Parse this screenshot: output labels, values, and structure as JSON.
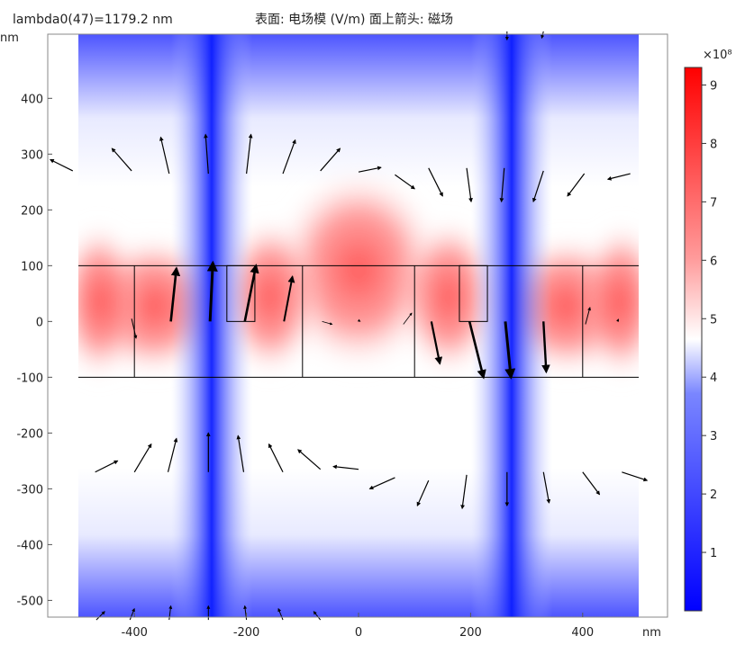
{
  "header": {
    "left_title": "lambda0(47)=1179.2 nm",
    "center_title": "表面: 电场模 (V/m)  面上箭头: 磁场"
  },
  "chart_data": {
    "type": "heatmap",
    "title": "表面: 电场模 (V/m)  面上箭头: 磁场",
    "subtitle": "lambda0(47)=1179.2 nm",
    "x_unit": "nm",
    "y_unit": "nm",
    "xlim": [
      -500,
      500
    ],
    "ylim": [
      -530,
      515
    ],
    "x_ticks": [
      -400,
      -200,
      0,
      200,
      400
    ],
    "y_ticks": [
      400,
      300,
      200,
      100,
      0,
      -100,
      -200,
      -300,
      -400,
      -500
    ],
    "colorbar": {
      "multiplier": "×10⁸",
      "ticks": [
        1,
        2,
        3,
        4,
        5,
        6,
        7,
        8,
        9
      ],
      "range": [
        0,
        9.3
      ],
      "colors": {
        "low": "#0000ff",
        "mid": "#ffffff",
        "high": "#ff0000"
      }
    },
    "structure": {
      "slab": {
        "x": [
          -500,
          500
        ],
        "y": [
          -100,
          100
        ]
      },
      "vertical_boundaries_x": [
        -400,
        -100,
        100,
        400
      ],
      "notches": [
        {
          "x": [
            -235,
            -185
          ],
          "y": [
            0,
            100
          ]
        },
        {
          "x": [
            180,
            230
          ],
          "y": [
            0,
            100
          ]
        }
      ]
    },
    "field_nodes_x": [
      -260,
      270
    ],
    "arrows": [
      {
        "x": -510,
        "y": 270,
        "dx": -40,
        "dy": 20,
        "w": 1.2
      },
      {
        "x": -405,
        "y": 270,
        "dx": -35,
        "dy": 40,
        "w": 1.2
      },
      {
        "x": -338,
        "y": 265,
        "dx": -15,
        "dy": 65,
        "w": 1.2
      },
      {
        "x": -268,
        "y": 265,
        "dx": -5,
        "dy": 70,
        "w": 1.2
      },
      {
        "x": -200,
        "y": 265,
        "dx": 8,
        "dy": 70,
        "w": 1.2
      },
      {
        "x": -135,
        "y": 265,
        "dx": 22,
        "dy": 60,
        "w": 1.2
      },
      {
        "x": -68,
        "y": 270,
        "dx": 35,
        "dy": 40,
        "w": 1.2
      },
      {
        "x": 0,
        "y": 268,
        "dx": 40,
        "dy": 8,
        "w": 1.2
      },
      {
        "x": 65,
        "y": 263,
        "dx": 35,
        "dy": -25,
        "w": 1.2
      },
      {
        "x": 125,
        "y": 275,
        "dx": 25,
        "dy": -50,
        "w": 1.2
      },
      {
        "x": 193,
        "y": 275,
        "dx": 8,
        "dy": -60,
        "w": 1.2
      },
      {
        "x": 260,
        "y": 275,
        "dx": -5,
        "dy": -60,
        "w": 1.2
      },
      {
        "x": 330,
        "y": 270,
        "dx": -18,
        "dy": -55,
        "w": 1.2
      },
      {
        "x": 403,
        "y": 265,
        "dx": -30,
        "dy": -40,
        "w": 1.2
      },
      {
        "x": 485,
        "y": 265,
        "dx": -40,
        "dy": -10,
        "w": 1.2
      },
      {
        "x": -335,
        "y": 0,
        "dx": 10,
        "dy": 95,
        "w": 2.6
      },
      {
        "x": -265,
        "y": 0,
        "dx": 5,
        "dy": 105,
        "w": 3.0
      },
      {
        "x": -203,
        "y": 0,
        "dx": 20,
        "dy": 100,
        "w": 2.6
      },
      {
        "x": -133,
        "y": 0,
        "dx": 15,
        "dy": 80,
        "w": 2.0
      },
      {
        "x": -405,
        "y": 5,
        "dx": 8,
        "dy": -35,
        "w": 1.0
      },
      {
        "x": -65,
        "y": 0,
        "dx": 18,
        "dy": -5,
        "w": 0.8
      },
      {
        "x": 0,
        "y": 2,
        "dx": 3,
        "dy": -2,
        "w": 0.8
      },
      {
        "x": 80,
        "y": -5,
        "dx": 15,
        "dy": 20,
        "w": 0.8
      },
      {
        "x": 130,
        "y": 0,
        "dx": 15,
        "dy": -75,
        "w": 2.2
      },
      {
        "x": 198,
        "y": 0,
        "dx": 25,
        "dy": -100,
        "w": 2.6
      },
      {
        "x": 262,
        "y": 0,
        "dx": 10,
        "dy": -100,
        "w": 3.0
      },
      {
        "x": 330,
        "y": 0,
        "dx": 5,
        "dy": -90,
        "w": 2.4
      },
      {
        "x": 405,
        "y": -5,
        "dx": 8,
        "dy": 30,
        "w": 1.0
      },
      {
        "x": 462,
        "y": 0,
        "dx": 2,
        "dy": 4,
        "w": 0.8
      },
      {
        "x": -470,
        "y": -270,
        "dx": 40,
        "dy": 20,
        "w": 1.2
      },
      {
        "x": -400,
        "y": -270,
        "dx": 30,
        "dy": 50,
        "w": 1.2
      },
      {
        "x": -340,
        "y": -270,
        "dx": 15,
        "dy": 60,
        "w": 1.2
      },
      {
        "x": -268,
        "y": -270,
        "dx": 0,
        "dy": 70,
        "w": 1.2
      },
      {
        "x": -205,
        "y": -270,
        "dx": -10,
        "dy": 65,
        "w": 1.2
      },
      {
        "x": -135,
        "y": -270,
        "dx": -25,
        "dy": 50,
        "w": 1.2
      },
      {
        "x": -68,
        "y": -265,
        "dx": -40,
        "dy": 35,
        "w": 1.2
      },
      {
        "x": 0,
        "y": -265,
        "dx": -45,
        "dy": 5,
        "w": 1.2
      },
      {
        "x": 65,
        "y": -280,
        "dx": -45,
        "dy": -20,
        "w": 1.2
      },
      {
        "x": 125,
        "y": -285,
        "dx": -20,
        "dy": -45,
        "w": 1.2
      },
      {
        "x": 193,
        "y": -275,
        "dx": -8,
        "dy": -60,
        "w": 1.2
      },
      {
        "x": 265,
        "y": -270,
        "dx": 0,
        "dy": -60,
        "w": 1.2
      },
      {
        "x": 330,
        "y": -270,
        "dx": 10,
        "dy": -55,
        "w": 1.2
      },
      {
        "x": 400,
        "y": -270,
        "dx": 30,
        "dy": -40,
        "w": 1.2
      },
      {
        "x": 470,
        "y": -270,
        "dx": 45,
        "dy": -15,
        "w": 1.2
      },
      {
        "x": -468,
        "y": -535,
        "dx": 15,
        "dy": 15,
        "w": 1.0
      },
      {
        "x": -408,
        "y": -535,
        "dx": 8,
        "dy": 20,
        "w": 1.0
      },
      {
        "x": -338,
        "y": -535,
        "dx": 3,
        "dy": 25,
        "w": 1.0
      },
      {
        "x": -268,
        "y": -535,
        "dx": 0,
        "dy": 25,
        "w": 1.0
      },
      {
        "x": -200,
        "y": -535,
        "dx": -3,
        "dy": 25,
        "w": 1.0
      },
      {
        "x": -135,
        "y": -535,
        "dx": -8,
        "dy": 20,
        "w": 1.0
      },
      {
        "x": -68,
        "y": -535,
        "dx": -12,
        "dy": 15,
        "w": 1.0
      },
      {
        "x": 265,
        "y": 520,
        "dx": 0,
        "dy": -15,
        "w": 1.0
      },
      {
        "x": 330,
        "y": 520,
        "dx": -3,
        "dy": -12,
        "w": 1.0
      }
    ]
  },
  "axes": {
    "x_unit_label": "nm",
    "y_unit_label": "nm"
  }
}
